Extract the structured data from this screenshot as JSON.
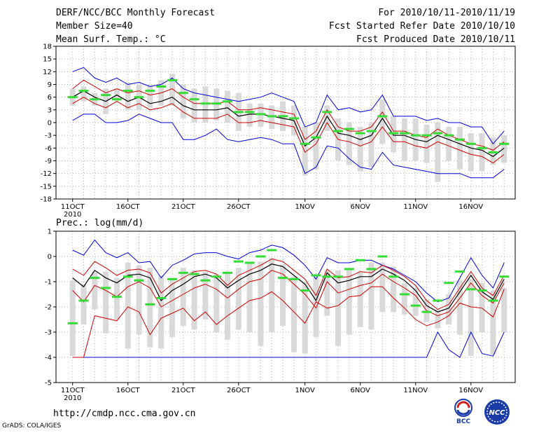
{
  "header": {
    "title": "DERF/NCC/BCC Monthly Forecast",
    "member_size": "Member Size=40",
    "variable": "Mean Surf. Temp.: °C",
    "period": "For 2010/10/11-2010/11/19",
    "fcst_started": "Fcst Started Refer Date 2010/10/10",
    "fcst_produced": "Fcst Produced Date 2010/10/11"
  },
  "footer": {
    "url": "http://cmdp.ncc.cma.gov.cn",
    "grads": "GrADS: COLA/IGES",
    "logo_bcc": "BCC",
    "logo_ncc": "NCC"
  },
  "colors": {
    "envelope": "#0000dd",
    "spread": "#cc0000",
    "mean": "#000000",
    "box": "#d9d9d9",
    "observed": "#33dd33",
    "grid": "#b0b0b0"
  },
  "chart_data": [
    {
      "type": "line",
      "title": "Mean Surf. Temp.: °C",
      "x_tick_labels": [
        "11OCT",
        "16OCT",
        "21OCT",
        "26OCT",
        "1NOV",
        "6NOV",
        "11NOV",
        "16NOV"
      ],
      "x_tick_days": [
        1,
        6,
        11,
        16,
        22,
        27,
        32,
        37
      ],
      "year_label": "2010",
      "days": 40,
      "ylim": [
        -18,
        18
      ],
      "yticks": [
        -18,
        -15,
        -12,
        -9,
        -6,
        -3,
        0,
        3,
        6,
        9,
        12,
        15,
        18
      ],
      "series": [
        {
          "name": "max",
          "values": [
            12,
            13,
            10.5,
            9.5,
            10.5,
            9,
            9.5,
            8.5,
            9,
            10.5,
            8,
            7,
            6.5,
            6,
            5.5,
            5,
            5.5,
            6,
            7,
            6,
            5,
            -1,
            0,
            6.5,
            3,
            3.5,
            2.5,
            3,
            6.5,
            1.5,
            1.5,
            1.5,
            0.5,
            1,
            0,
            0,
            -1,
            -1,
            -5,
            -2
          ]
        },
        {
          "name": "upper",
          "values": [
            8,
            10,
            8.5,
            7,
            8,
            7,
            7.5,
            6.5,
            7,
            8,
            6,
            4.5,
            4.5,
            4.5,
            5,
            3,
            3,
            3.5,
            3,
            2.5,
            2,
            -4,
            -2,
            3,
            -1,
            -2,
            -2,
            -1,
            2.5,
            -2,
            -2,
            -3,
            -3.5,
            -1.5,
            -3,
            -4,
            -5,
            -5.5,
            -6.5,
            -4.5
          ]
        },
        {
          "name": "mean",
          "values": [
            6,
            7.5,
            6,
            5,
            6.5,
            5,
            6,
            4.5,
            5,
            6,
            4,
            3,
            3,
            3,
            3.5,
            1.5,
            2,
            2,
            1.5,
            1,
            0.5,
            -5.5,
            -3.5,
            1.5,
            -2.5,
            -3,
            -4,
            -3,
            1,
            -3,
            -3,
            -4,
            -4.5,
            -3,
            -4,
            -5,
            -6,
            -6.5,
            -8,
            -6
          ]
        },
        {
          "name": "lower",
          "values": [
            4.5,
            6,
            4.5,
            3.5,
            5,
            3.5,
            4.5,
            3,
            3.5,
            4.5,
            2.5,
            1,
            1,
            1,
            2,
            0,
            0,
            0.5,
            0,
            -0.5,
            -1,
            -7,
            -5,
            0,
            -4,
            -4.5,
            -5.5,
            -4.5,
            -1,
            -4.5,
            -4.5,
            -5.5,
            -6,
            -4.5,
            -5.5,
            -6.5,
            -7.5,
            -8,
            -9.5,
            -7.5
          ]
        },
        {
          "name": "min",
          "values": [
            0.5,
            2,
            2,
            0,
            0,
            0.5,
            2,
            1,
            0,
            0,
            -4,
            -4,
            -3,
            -1.5,
            -4,
            -4.5,
            -4,
            -3.5,
            -4,
            -5,
            -5,
            -12,
            -10.5,
            -5.5,
            -6,
            -8.5,
            -10.5,
            -11,
            -7,
            -10,
            -10.5,
            -11,
            -11.5,
            -12,
            -12,
            -12,
            -13,
            -13,
            -13,
            -11
          ]
        },
        {
          "name": "box_top",
          "values": [
            8,
            8.5,
            7,
            8,
            8,
            9.5,
            9,
            9,
            10,
            11.5,
            9,
            8,
            8.5,
            8,
            7.5,
            7,
            4.5,
            4.5,
            4,
            5,
            4,
            -1,
            0,
            4,
            1,
            0,
            -1,
            0,
            5.5,
            1.5,
            1,
            1,
            -0.5,
            0,
            -1,
            -1,
            -2.5,
            -2.5,
            -3.5,
            -3
          ]
        },
        {
          "name": "box_bottom",
          "values": [
            4,
            5,
            4,
            2,
            5,
            3,
            3,
            3.5,
            4,
            4,
            1,
            0,
            0,
            0.5,
            0,
            -2,
            -1,
            -1,
            -1.5,
            -2,
            -3,
            -12.5,
            -11,
            -2,
            -9,
            -10,
            -11.5,
            -10.5,
            -5,
            -7,
            -9,
            -9,
            -9.5,
            -14,
            -9,
            -11,
            -11.5,
            -11.5,
            -10,
            -9.5
          ]
        },
        {
          "name": "observed",
          "values": [
            6,
            7.5,
            5.5,
            6.5,
            5.5,
            7.5,
            6,
            7.5,
            8.5,
            10,
            7,
            5.5,
            4.5,
            4.5,
            5,
            2.5,
            2.5,
            2,
            1.5,
            1.5,
            1,
            -5,
            -3.5,
            2.5,
            -2,
            -1.5,
            -2.5,
            -2,
            1.5,
            -2.5,
            -2.5,
            -3,
            -3,
            -2.5,
            -3,
            -4,
            -5,
            -6,
            -7,
            -5
          ]
        }
      ]
    },
    {
      "type": "line",
      "title": "Prec.: log(mm/d)",
      "x_tick_labels": [
        "11OCT",
        "16OCT",
        "21OCT",
        "26OCT",
        "1NOV",
        "6NOV",
        "11NOV",
        "16NOV"
      ],
      "x_tick_days": [
        1,
        6,
        11,
        16,
        22,
        27,
        32,
        37
      ],
      "year_label": "2010",
      "days": 40,
      "ylim": [
        -5,
        1
      ],
      "yticks": [
        -5,
        -4,
        -3,
        -2,
        -1,
        0,
        1
      ],
      "series": [
        {
          "name": "max",
          "values": [
            0.25,
            0.05,
            0.65,
            0.15,
            -0.05,
            0.15,
            -0.25,
            -0.2,
            -0.85,
            -0.35,
            -0.15,
            0.1,
            0.15,
            0.15,
            0.0,
            -0.1,
            0.15,
            0.25,
            0.45,
            0.35,
            0.05,
            -0.35,
            -0.9,
            -0.05,
            -0.25,
            -0.25,
            -0.15,
            -0.15,
            -0.35,
            -0.5,
            -0.75,
            -1.0,
            -1.45,
            -1.8,
            -1.65,
            -0.85,
            -0.05,
            -0.75,
            -1.25,
            -0.25
          ]
        },
        {
          "name": "upper",
          "values": [
            -0.5,
            -0.75,
            -0.2,
            -0.45,
            -0.75,
            -0.55,
            -0.5,
            -0.65,
            -1.45,
            -1.1,
            -0.85,
            -0.6,
            -0.55,
            -0.7,
            -1.15,
            -0.75,
            -0.55,
            -0.35,
            -0.1,
            -0.2,
            -0.55,
            -0.9,
            -1.55,
            -0.5,
            -0.85,
            -0.8,
            -0.6,
            -0.65,
            -0.35,
            -0.55,
            -0.8,
            -1.15,
            -1.75,
            -2.1,
            -1.9,
            -1.25,
            -0.6,
            -1.25,
            -1.55,
            -0.75
          ]
        },
        {
          "name": "mean",
          "values": [
            -0.85,
            -1.2,
            -0.55,
            -0.85,
            -1.05,
            -0.75,
            -0.7,
            -0.85,
            -1.75,
            -1.35,
            -1.1,
            -0.8,
            -0.7,
            -0.85,
            -1.25,
            -0.95,
            -0.7,
            -0.55,
            -0.3,
            -0.4,
            -0.75,
            -1.1,
            -1.75,
            -0.65,
            -1.05,
            -0.95,
            -0.8,
            -0.8,
            -0.5,
            -0.7,
            -0.95,
            -1.35,
            -1.95,
            -2.2,
            -2.05,
            -1.4,
            -0.75,
            -1.4,
            -1.7,
            -0.9
          ]
        },
        {
          "name": "lower",
          "values": [
            -1.35,
            -1.8,
            -1.15,
            -1.35,
            -1.6,
            -1.2,
            -1.0,
            -1.25,
            -2.0,
            -1.75,
            -1.5,
            -1.25,
            -1.1,
            -1.3,
            -1.65,
            -1.3,
            -1.0,
            -0.9,
            -0.55,
            -0.7,
            -1.1,
            -1.5,
            -2.05,
            -1.0,
            -1.45,
            -1.3,
            -1.15,
            -1.05,
            -0.7,
            -1.0,
            -1.25,
            -1.55,
            -2.15,
            -2.35,
            -2.2,
            -1.65,
            -1.05,
            -1.55,
            -1.85,
            -1.05
          ]
        },
        {
          "name": "low_red",
          "values": [
            -4.0,
            -4.0,
            -2.35,
            -2.45,
            -2.55,
            -2.0,
            -2.2,
            -3.1,
            -2.45,
            -2.25,
            -2.05,
            -2.55,
            -2.2,
            -2.7,
            -2.35,
            -2.05,
            -1.75,
            -1.65,
            -1.4,
            -1.75,
            -2.2,
            -2.65,
            -1.8,
            -2.05,
            -1.95,
            -1.6,
            -1.55,
            -1.2,
            -1.2,
            -1.65,
            -2.05,
            -2.5,
            -2.75,
            -2.6,
            -2.35,
            -1.85,
            -2.0,
            -2.05,
            -2.4,
            -1.3
          ]
        },
        {
          "name": "min",
          "values": [
            -4.0,
            -4.0,
            -4.0,
            -4.0,
            -4.0,
            -4.0,
            -4.0,
            -4.0,
            -4.0,
            -4.0,
            -4.0,
            -4.0,
            -4.0,
            -4.0,
            -4.0,
            -4.0,
            -4.0,
            -4.0,
            -4.0,
            -4.0,
            -4.0,
            -4.0,
            -4.0,
            -4.0,
            -4.0,
            -4.0,
            -4.0,
            -4.0,
            -4.0,
            -4.0,
            -4.0,
            -4.0,
            -4.0,
            -3.0,
            -3.7,
            -4.0,
            -3.0,
            -3.85,
            -3.95,
            -3.0
          ]
        },
        {
          "name": "box_top",
          "values": [
            -0.95,
            -1.1,
            -0.6,
            -0.6,
            -0.85,
            -0.25,
            -0.35,
            -0.45,
            -0.75,
            -0.85,
            -0.45,
            -0.55,
            -0.6,
            -0.7,
            -0.6,
            -0.45,
            -0.25,
            -0.2,
            -0.05,
            -0.3,
            -0.8,
            -1.0,
            -0.8,
            -0.55,
            -0.55,
            -0.5,
            -0.6,
            -0.25,
            -0.25,
            -0.4,
            -1.05,
            -1.25,
            -1.7,
            -2.1,
            -1.5,
            -0.95,
            -0.9,
            -1.05,
            -1.35,
            -1.25
          ]
        },
        {
          "name": "box_bottom",
          "values": [
            -3.95,
            -2.7,
            -2.1,
            -3.05,
            -2.5,
            -3.65,
            -3.1,
            -3.6,
            -3.65,
            -3.2,
            -2.75,
            -2.9,
            -2.5,
            -3.0,
            -3.3,
            -2.9,
            -3.0,
            -3.55,
            -3.0,
            -2.75,
            -3.8,
            -3.85,
            -3.2,
            -2.35,
            -3.55,
            -3.1,
            -2.8,
            -2.9,
            -2.2,
            -2.2,
            -2.3,
            -2.35,
            -2.6,
            -2.85,
            -2.7,
            -3.1,
            -3.95,
            -3.0,
            -3.9,
            -3.0
          ]
        },
        {
          "name": "observed",
          "values": [
            -2.65,
            -1.75,
            -0.85,
            -1.25,
            -1.6,
            -0.8,
            -0.95,
            -1.9,
            -1.65,
            -0.9,
            -0.65,
            -0.7,
            -0.95,
            -0.8,
            -0.65,
            -0.2,
            -0.25,
            0.0,
            0.25,
            -0.85,
            -0.9,
            -1.35,
            -0.75,
            -0.8,
            -0.8,
            -0.5,
            -0.15,
            -0.5,
            0.0,
            -0.8,
            -1.5,
            -1.95,
            -2.2,
            -1.75,
            -1.05,
            -0.6,
            -1.3,
            -1.35,
            -1.75,
            -0.8
          ]
        }
      ]
    }
  ]
}
